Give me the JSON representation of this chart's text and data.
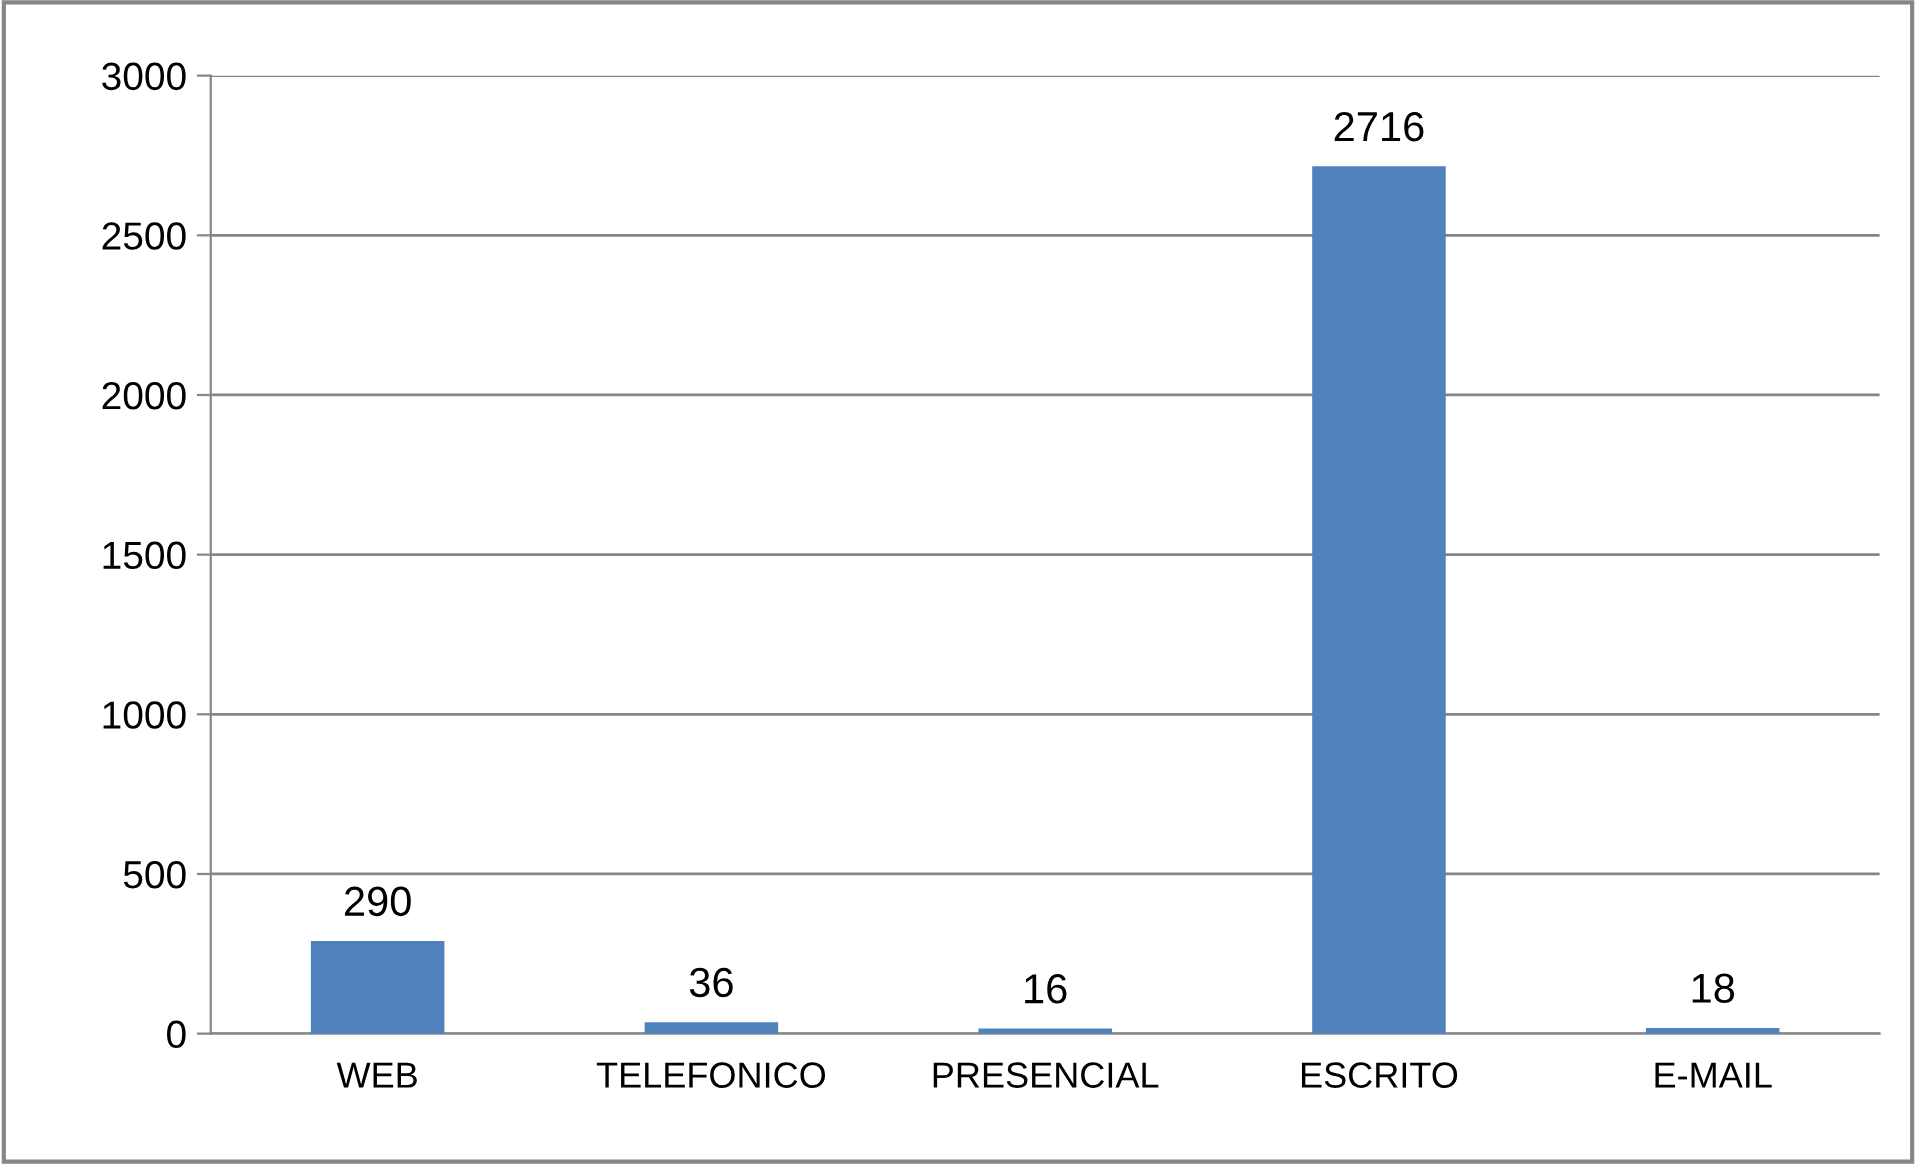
{
  "chart_data": {
    "type": "bar",
    "categories": [
      "WEB",
      "TELEFONICO",
      "PRESENCIAL",
      "ESCRITO",
      "E-MAIL"
    ],
    "values": [
      290,
      36,
      16,
      2716,
      18
    ],
    "color": "#4f81bd",
    "ylim": [
      0,
      3000
    ],
    "yticks": [
      0,
      500,
      1000,
      1500,
      2000,
      2500,
      3000
    ],
    "grid": "y",
    "data_labels": true
  }
}
